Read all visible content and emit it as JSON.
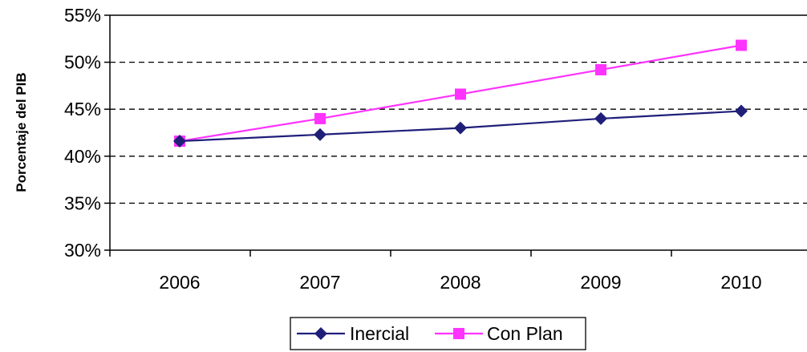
{
  "chart_data": {
    "type": "line",
    "title": "",
    "xlabel": "",
    "ylabel": "Porcentaje del PIB",
    "categories": [
      "2006",
      "2007",
      "2008",
      "2009",
      "2010"
    ],
    "y_ticks": [
      "30%",
      "35%",
      "40%",
      "45%",
      "50%",
      "55%"
    ],
    "ylim": [
      30,
      55
    ],
    "grid": "horizontal dashed",
    "legend_position": "bottom",
    "series": [
      {
        "name": "Inercial",
        "color": "#1f1f7a",
        "marker": "diamond",
        "values": [
          41.6,
          42.3,
          43.0,
          44.0,
          44.8
        ]
      },
      {
        "name": "Con Plan",
        "color": "#ff33ff",
        "marker": "square",
        "values": [
          41.6,
          44.0,
          46.6,
          49.2,
          51.8
        ]
      }
    ]
  }
}
